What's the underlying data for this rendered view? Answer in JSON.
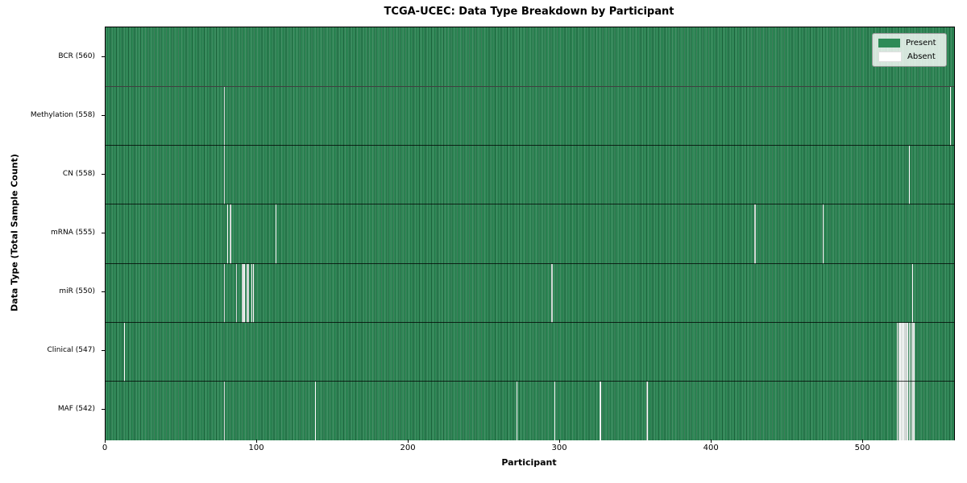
{
  "chart_data": {
    "type": "heatmap",
    "title": "TCGA-UCEC: Data Type Breakdown by Participant",
    "xlabel": "Participant",
    "ylabel": "Data Type (Total Sample Count)",
    "x_range": [
      0,
      560
    ],
    "x_ticks": [
      0,
      100,
      200,
      300,
      400,
      500
    ],
    "n_participants": 560,
    "grid": "row-separators",
    "legend_position": "upper-right",
    "legend": [
      {
        "label": "Present",
        "color": "#2e8b57"
      },
      {
        "label": "Absent",
        "color": "#ffffff"
      }
    ],
    "colors": {
      "present": "#2e8b57",
      "absent": "#ffffff",
      "row_separator": "#000000",
      "spine": "#000000"
    },
    "rows": [
      {
        "key": "bcr",
        "label": "BCR (560)",
        "total_samples": 560,
        "absent_participants": []
      },
      {
        "key": "methylation",
        "label": "Methylation (558)",
        "total_samples": 558,
        "absent_participants": [
          78,
          557
        ]
      },
      {
        "key": "cn",
        "label": "CN (558)",
        "total_samples": 558,
        "absent_participants": [
          78,
          530
        ]
      },
      {
        "key": "mrna",
        "label": "mRNA (555)",
        "total_samples": 555,
        "absent_participants": [
          80,
          82,
          112,
          428,
          473
        ]
      },
      {
        "key": "mir",
        "label": "miR (550)",
        "total_samples": 550,
        "absent_participants": [
          78,
          86,
          90,
          91,
          93,
          94,
          96,
          97,
          294,
          532
        ]
      },
      {
        "key": "clinical",
        "label": "Clinical (547)",
        "total_samples": 547,
        "absent_participants": [
          12,
          522,
          523,
          524,
          525,
          526,
          527,
          528,
          529,
          530,
          531,
          532,
          533
        ]
      },
      {
        "key": "maf",
        "label": "MAF (542)",
        "total_samples": 542,
        "absent_participants": [
          78,
          138,
          271,
          296,
          326,
          357,
          522,
          523,
          524,
          525,
          526,
          527,
          528,
          529,
          530,
          531,
          532,
          533
        ]
      }
    ]
  }
}
